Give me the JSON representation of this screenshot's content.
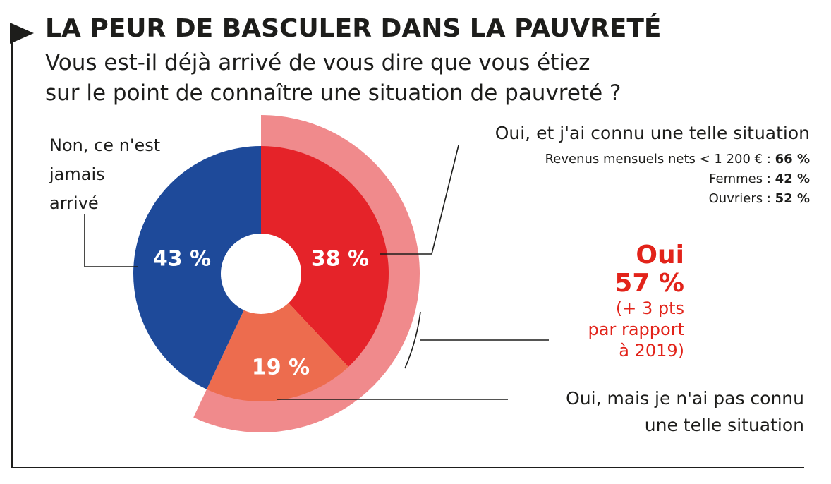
{
  "header": {
    "title": "LA PEUR DE BASCULER DANS LA PAUVRETÉ",
    "question_line1": "Vous est-il déjà arrivé de vous dire que vous étiez",
    "question_line2": "sur le point de connaître une situation de pauvreté ?"
  },
  "labels": {
    "non_line1": "Non, ce n'est",
    "non_line2": "jamais",
    "non_line3": "arrivé",
    "oui_connu": "Oui, et j'ai connu une telle situation",
    "oui_pas_line1": "Oui, mais je n'ai pas connu",
    "oui_pas_line2": "une telle situation"
  },
  "details": [
    {
      "label": "Revenus mensuels nets < 1 200 € : ",
      "value": "66 %"
    },
    {
      "label": "Femmes : ",
      "value": "42 %"
    },
    {
      "label": "Ouvriers : ",
      "value": "52 %"
    }
  ],
  "total": {
    "label": "Oui",
    "value": "57 %",
    "note_line1": "(+ 3 pts",
    "note_line2": "par rapport",
    "note_line3": "à 2019)"
  },
  "chart_data": {
    "type": "pie",
    "title": "LA PEUR DE BASCULER DANS LA PAUVRETÉ",
    "donut": true,
    "unit": "%",
    "slices": [
      {
        "label": "Oui, et j'ai connu une telle situation",
        "value": 38,
        "display": "38 %",
        "color": "#e52329"
      },
      {
        "label": "Oui, mais je n'ai pas connu une telle situation",
        "value": 19,
        "display": "19 %",
        "color": "#ed6c4e"
      },
      {
        "label": "Non, ce n'est jamais arrivé",
        "value": 43,
        "display": "43 %",
        "color": "#1e4a9a"
      }
    ],
    "highlight": {
      "label": "Oui",
      "value": 57,
      "display": "57 %",
      "color": "#f08a8c"
    }
  }
}
